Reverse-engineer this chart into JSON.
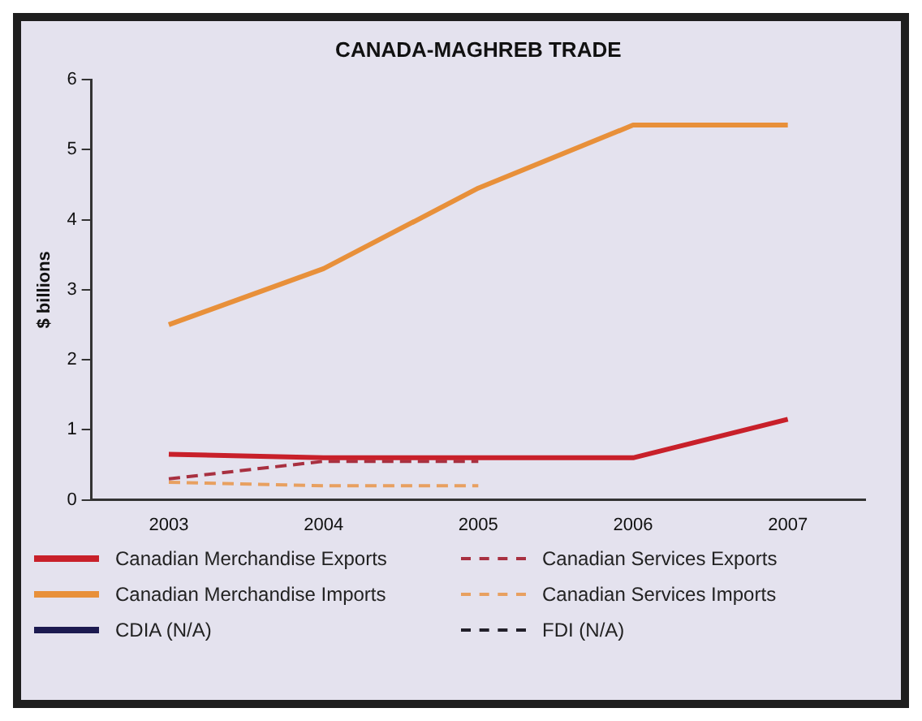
{
  "chart_data": {
    "type": "line",
    "title": "CANADA-MAGHREB TRADE",
    "ylabel": "$ billions",
    "categories": [
      "2003",
      "2004",
      "2005",
      "2006",
      "2007"
    ],
    "ylim": [
      0,
      6
    ],
    "yticks": [
      0,
      1,
      2,
      3,
      4,
      5,
      6
    ],
    "grid": false,
    "legend": "bottom",
    "marker": "none",
    "series": [
      {
        "name": "Canadian Merchandise Exports",
        "color": "#c8202a",
        "line_style": "solid",
        "values": [
          0.65,
          0.6,
          0.6,
          0.6,
          1.15
        ]
      },
      {
        "name": "Canadian Services Exports",
        "color": "#a83040",
        "line_style": "dashed",
        "values": [
          0.3,
          0.55,
          0.55,
          null,
          null
        ]
      },
      {
        "name": "Canadian Merchandise Imports",
        "color": "#e8903a",
        "line_style": "solid",
        "values": [
          2.5,
          3.3,
          4.45,
          5.35,
          5.35
        ]
      },
      {
        "name": "Canadian Services Imports",
        "color": "#e8a060",
        "line_style": "dashed",
        "values": [
          0.25,
          0.2,
          0.2,
          null,
          null
        ]
      },
      {
        "name": "CDIA (N/A)",
        "color": "#1c1a50",
        "line_style": "solid",
        "values": [
          null,
          null,
          null,
          null,
          null
        ]
      },
      {
        "name": "FDI (N/A)",
        "color": "#22202a",
        "line_style": "dashed",
        "values": [
          null,
          null,
          null,
          null,
          null
        ]
      }
    ]
  }
}
